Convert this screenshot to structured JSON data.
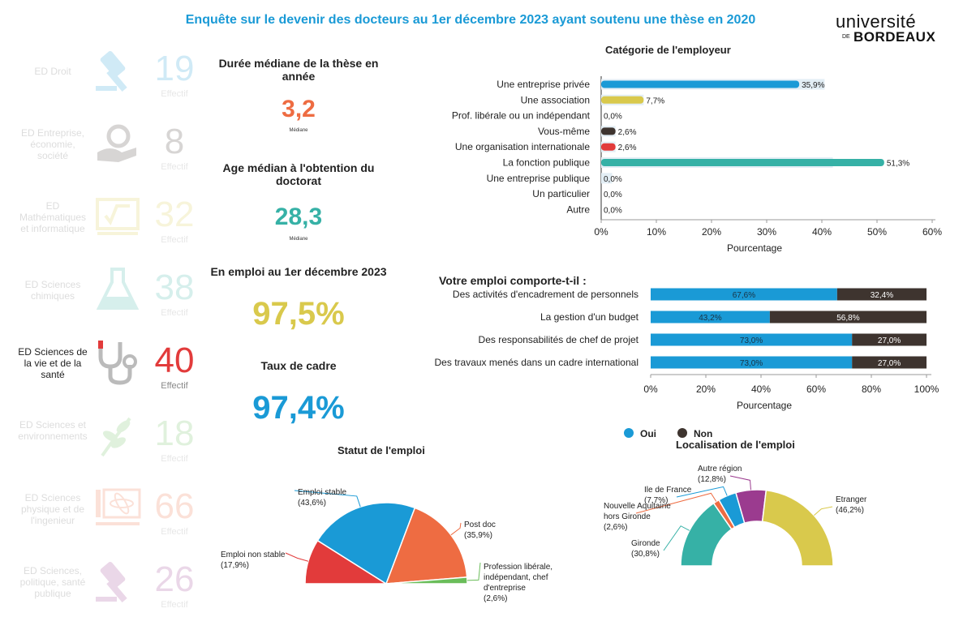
{
  "title": "Enquête sur le devenir des docteurs au 1er décembre 2023 ayant soutenu une thèse en 2020",
  "logo": {
    "word": "université",
    "prefix": "DE",
    "name": "BORDEAUX"
  },
  "colors": {
    "blue": "#1a9ad6",
    "orange": "#ee6c42",
    "teal": "#36b1a6",
    "yellow": "#d9c94c",
    "red": "#e23b3b",
    "dark": "#3e342f",
    "green": "#6abd5a",
    "purple": "#9b3b8f"
  },
  "doctoral_schools": [
    {
      "label": "ED Droit",
      "count": "19",
      "effectif": "Effectif",
      "icon": "gavel-icon",
      "color": "#1a9ad6",
      "active": false
    },
    {
      "label": "ED Entreprise, économie, société",
      "count": "8",
      "effectif": "Effectif",
      "icon": "money-hand-icon",
      "color": "#3e342f",
      "active": false
    },
    {
      "label": "ED Mathématiques et informatique",
      "count": "32",
      "effectif": "Effectif",
      "icon": "sqrt-board-icon",
      "color": "#d9c94c",
      "active": false
    },
    {
      "label": "ED Sciences chimiques",
      "count": "38",
      "effectif": "Effectif",
      "icon": "flask-icon",
      "color": "#36b1a6",
      "active": false
    },
    {
      "label": "ED Sciences de la vie et de la santé",
      "count": "40",
      "effectif": "Effectif",
      "icon": "stethoscope-icon",
      "color": "#e23b3b",
      "active": true
    },
    {
      "label": "ED Sciences et environnements",
      "count": "18",
      "effectif": "Effectif",
      "icon": "leaf-icon",
      "color": "#6abd5a",
      "active": false
    },
    {
      "label": "ED Sciences physique et de l'ingenieur",
      "count": "66",
      "effectif": "Effectif",
      "icon": "atom-screen-icon",
      "color": "#ee6c42",
      "active": false
    },
    {
      "label": "ED Sciences, politique, santé publique",
      "count": "26",
      "effectif": "Effectif",
      "icon": "gavel-icon",
      "color": "#9b3b8f",
      "active": false
    }
  ],
  "kpis": {
    "duree": {
      "title": "Durée médiane de la thèse en année",
      "value": "3,2",
      "sub": "Médiane"
    },
    "age": {
      "title": "Age médian à l'obtention du doctorat",
      "value": "28,3",
      "sub": "Médiane"
    },
    "emploi": {
      "title": "En emploi au 1er décembre 2023",
      "value": "97,5%"
    },
    "cadre": {
      "title": "Taux de cadre",
      "value": "97,4%"
    }
  },
  "chart_data": [
    {
      "type": "bar",
      "orientation": "horizontal",
      "title": "Catégorie de l'employeur",
      "xlabel": "Pourcentage",
      "xlim": [
        0,
        60
      ],
      "xticks": [
        "0%",
        "10%",
        "20%",
        "30%",
        "40%",
        "50%",
        "60%"
      ],
      "categories": [
        "Une entreprise privée",
        "Une association",
        "Prof. libérale ou un indépendant",
        "Vous-même",
        "Une organisation internationale",
        "La fonction publique",
        "Une entreprise publique",
        "Un particulier",
        "Autre"
      ],
      "values": [
        35.9,
        7.7,
        0.0,
        2.6,
        2.6,
        51.3,
        0.0,
        0.0,
        0.0
      ],
      "labels": [
        "35,9%",
        "7,7%",
        "0,0%",
        "2,6%",
        "2,6%",
        "51,3%",
        "0,0%",
        "0,0%",
        "0,0%"
      ],
      "reference_values": [
        40.5,
        7.7,
        0.0,
        2.6,
        2.6,
        42.0,
        2.0,
        0.0,
        0.0
      ],
      "colors": [
        "#1a9ad6",
        "#d9c94c",
        "#6abd5a",
        "#3e342f",
        "#e23b3b",
        "#36b1a6",
        "#ee6c42",
        "#9b3b8f",
        "#999999"
      ]
    },
    {
      "type": "bar",
      "orientation": "horizontal",
      "stacked": true,
      "title": "Votre emploi comporte-t-il :",
      "xlabel": "Pourcentage",
      "xlim": [
        0,
        100
      ],
      "xticks": [
        "0%",
        "20%",
        "40%",
        "60%",
        "80%",
        "100%"
      ],
      "categories": [
        "Des activités d'encadrement de personnels",
        "La gestion d'un budget",
        "Des responsabilités de chef de projet",
        "Des travaux menés dans un cadre international"
      ],
      "series": [
        {
          "name": "Oui",
          "values": [
            67.6,
            43.2,
            73.0,
            73.0
          ],
          "labels": [
            "67,6%",
            "43,2%",
            "73,0%",
            "73,0%"
          ],
          "color": "#1a9ad6"
        },
        {
          "name": "Non",
          "values": [
            32.4,
            56.8,
            27.0,
            27.0
          ],
          "labels": [
            "32,4%",
            "56,8%",
            "27,0%",
            "27,0%"
          ],
          "color": "#3e342f"
        }
      ],
      "legend": "bottom-left"
    },
    {
      "type": "pie",
      "variant": "semicircle",
      "title": "Statut de l'emploi",
      "slices": [
        {
          "name": "Emploi non stable",
          "value": 17.9,
          "label": "(17,9%)",
          "color": "#e23b3b"
        },
        {
          "name": "Emploi stable",
          "value": 43.6,
          "label": "(43,6%)",
          "color": "#1a9ad6"
        },
        {
          "name": "Post doc",
          "value": 35.9,
          "label": "(35,9%)",
          "color": "#ee6c42"
        },
        {
          "name": "Profession libérale, indépendant, chef d'entreprise",
          "value": 2.6,
          "label": "(2,6%)",
          "color": "#6abd5a"
        }
      ]
    },
    {
      "type": "pie",
      "variant": "semicircle-donut",
      "title": "Localisation de l'emploi",
      "slices": [
        {
          "name": "Gironde",
          "value": 30.8,
          "label": "(30,8%)",
          "color": "#36b1a6"
        },
        {
          "name": "Nouvelle Aquitaine hors Gironde",
          "value": 2.6,
          "label": "(2,6%)",
          "color": "#ee6c42"
        },
        {
          "name": "Ile de France",
          "value": 7.7,
          "label": "(7,7%)",
          "color": "#1a9ad6"
        },
        {
          "name": "Autre région",
          "value": 12.8,
          "label": "(12,8%)",
          "color": "#9b3b8f"
        },
        {
          "name": "Etranger",
          "value": 46.2,
          "label": "(46,2%)",
          "color": "#d9c94c"
        }
      ]
    }
  ]
}
